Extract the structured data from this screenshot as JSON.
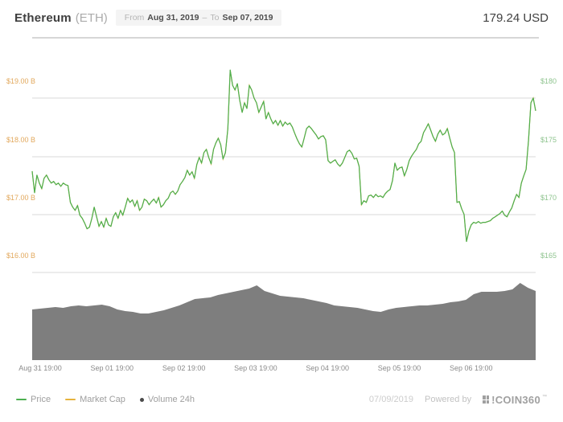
{
  "header": {
    "title": "Ethereum",
    "ticker": "(ETH)",
    "range_badge": {
      "from_label": "From",
      "from_date": "Aug 31, 2019",
      "separator": "–",
      "to_label": "To",
      "to_date": "Sep 07, 2019"
    },
    "price": "179.24 USD"
  },
  "chart_data": {
    "type": "line",
    "title": "Ethereum (ETH) price, market cap and 24h volume — Aug 31, 2019 to Sep 07, 2019",
    "grid": true,
    "x_ticks": [
      "Aug 31 19:00",
      "Sep 01 19:00",
      "Sep 02 19:00",
      "Sep 03 19:00",
      "Sep 04 19:00",
      "Sep 05 19:00",
      "Sep 06 19:00"
    ],
    "price_axis": {
      "side": "right",
      "unit": "USD",
      "ticks": [
        180,
        175,
        170,
        165
      ],
      "tick_labels": [
        "$180",
        "$175",
        "$170",
        "$165"
      ],
      "ylim": [
        164.5,
        185.2
      ],
      "color": "#8fc48f"
    },
    "marketcap_axis": {
      "side": "left",
      "unit": "USD billions",
      "ticks": [
        19.0,
        18.0,
        17.0,
        16.0
      ],
      "tick_labels": [
        "$19.00 B",
        "$18.00 B",
        "$17.00 B",
        "$16.00 B"
      ],
      "color": "#e2a85c"
    },
    "series": [
      {
        "name": "Price",
        "type": "line",
        "color": "#4caf50",
        "unit": "USD",
        "values": [
          173.72,
          171.86,
          173.38,
          172.69,
          172.21,
          173.1,
          173.38,
          172.97,
          172.69,
          172.83,
          172.55,
          172.69,
          172.41,
          172.69,
          172.55,
          172.48,
          171.03,
          170.62,
          170.34,
          170.76,
          169.93,
          169.66,
          169.24,
          168.76,
          168.9,
          169.66,
          170.62,
          169.79,
          168.97,
          169.38,
          168.9,
          169.66,
          169.1,
          168.97,
          169.79,
          170.14,
          169.66,
          170.34,
          169.93,
          170.62,
          171.38,
          171.03,
          171.24,
          170.69,
          171.17,
          170.34,
          170.62,
          171.31,
          171.17,
          170.83,
          171.1,
          171.31,
          170.97,
          171.45,
          170.62,
          170.83,
          171.17,
          171.38,
          171.86,
          172.0,
          171.72,
          172.0,
          172.55,
          172.83,
          173.17,
          173.79,
          173.38,
          173.66,
          173.1,
          174.28,
          174.9,
          174.41,
          175.31,
          175.59,
          174.9,
          174.34,
          175.59,
          176.14,
          176.55,
          176.0,
          174.76,
          175.31,
          177.38,
          182.41,
          181.1,
          180.69,
          181.24,
          179.79,
          178.76,
          179.59,
          179.1,
          181.1,
          180.69,
          180.0,
          179.59,
          178.76,
          179.24,
          179.72,
          178.21,
          178.76,
          178.21,
          177.79,
          178.07,
          177.66,
          178.07,
          177.59,
          177.93,
          177.72,
          177.86,
          177.52,
          176.97,
          176.48,
          176.07,
          175.79,
          176.55,
          177.38,
          177.59,
          177.38,
          177.1,
          176.83,
          176.48,
          176.69,
          176.76,
          176.41,
          174.62,
          174.41,
          174.55,
          174.69,
          174.34,
          174.14,
          174.41,
          174.9,
          175.38,
          175.52,
          175.24,
          174.76,
          174.83,
          174.14,
          170.83,
          171.17,
          171.03,
          171.59,
          171.66,
          171.45,
          171.72,
          171.52,
          171.59,
          171.45,
          171.79,
          172.0,
          172.14,
          172.9,
          174.41,
          173.79,
          174.0,
          174.07,
          173.31,
          173.86,
          174.62,
          175.0,
          175.31,
          175.59,
          176.07,
          176.28,
          177.03,
          177.38,
          177.79,
          177.24,
          176.69,
          176.28,
          176.9,
          177.24,
          176.83,
          176.97,
          177.38,
          176.55,
          175.79,
          175.31,
          171.03,
          171.1,
          170.48,
          170.0,
          167.66,
          168.55,
          169.1,
          169.31,
          169.24,
          169.38,
          169.24,
          169.31,
          169.31,
          169.38,
          169.45,
          169.66,
          169.79,
          169.93,
          170.07,
          170.28,
          169.93,
          169.79,
          170.21,
          170.55,
          171.17,
          171.72,
          171.45,
          172.69,
          173.31,
          173.86,
          176.34,
          179.59,
          180.0,
          178.9
        ]
      },
      {
        "name": "Market Cap",
        "type": "line",
        "color": "#e6b33d",
        "unit": "USD billions",
        "note": "coincides visually with the Price line (hidden beneath it)",
        "values_follow": "Price"
      },
      {
        "name": "Volume 24h",
        "type": "area",
        "color": "#7e7e7e",
        "unit": "relative",
        "values": [
          0.63,
          0.64,
          0.65,
          0.66,
          0.65,
          0.67,
          0.68,
          0.67,
          0.68,
          0.69,
          0.67,
          0.63,
          0.61,
          0.6,
          0.58,
          0.58,
          0.6,
          0.62,
          0.65,
          0.68,
          0.72,
          0.76,
          0.77,
          0.78,
          0.81,
          0.83,
          0.85,
          0.87,
          0.89,
          0.93,
          0.86,
          0.83,
          0.8,
          0.79,
          0.78,
          0.77,
          0.75,
          0.73,
          0.71,
          0.68,
          0.67,
          0.66,
          0.65,
          0.63,
          0.61,
          0.6,
          0.63,
          0.65,
          0.66,
          0.67,
          0.68,
          0.68,
          0.69,
          0.7,
          0.72,
          0.73,
          0.75,
          0.82,
          0.85,
          0.85,
          0.85,
          0.86,
          0.88,
          0.96,
          0.9,
          0.86
        ]
      }
    ]
  },
  "legend": {
    "items": [
      {
        "label": "Price",
        "color": "#4caf50",
        "marker": "line"
      },
      {
        "label": "Market Cap",
        "color": "#e6b33d",
        "marker": "line"
      },
      {
        "label": "Volume 24h",
        "color": "#4a4a4a",
        "marker": "dot"
      }
    ]
  },
  "footer": {
    "date": "07/09/2019",
    "powered_by": "Powered by",
    "brand": "!COIN360",
    "trademark": "™"
  }
}
